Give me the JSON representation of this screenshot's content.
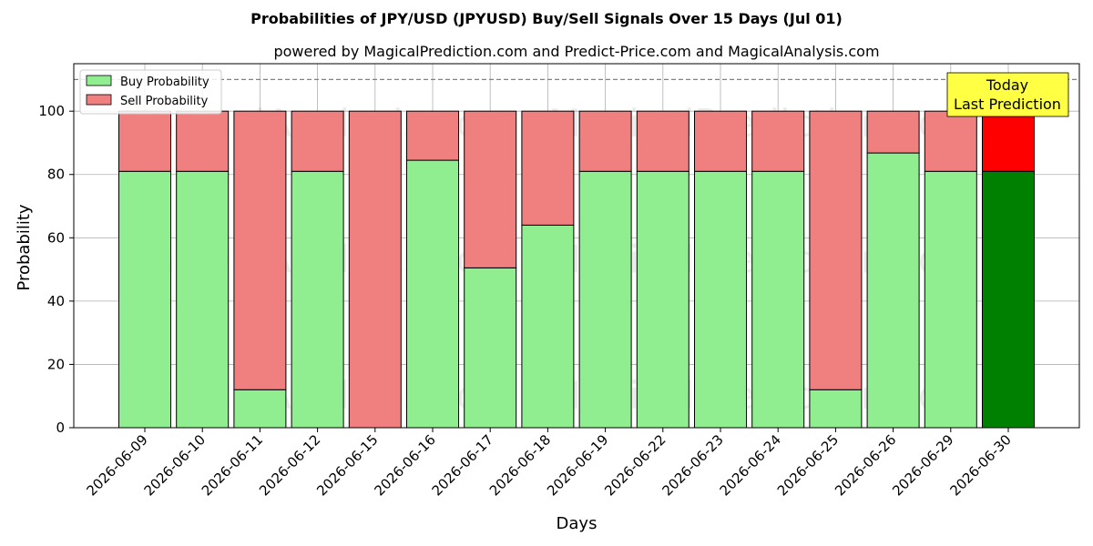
{
  "chart_data": {
    "type": "bar",
    "stacked": true,
    "title": "Probabilities of JPY/USD (JPYUSD) Buy/Sell Signals Over 15 Days (Jul 01)",
    "subtitle": "powered by MagicalPrediction.com and Predict-Price.com and MagicalAnalysis.com",
    "xlabel": "Days",
    "ylabel": "Probability",
    "ylim": [
      0,
      115
    ],
    "yticks": [
      0,
      20,
      40,
      60,
      80,
      100
    ],
    "reference_line": 110,
    "grid": true,
    "legend_position": "top-left",
    "categories": [
      "2026-06-09",
      "2026-06-10",
      "2026-06-11",
      "2026-06-12",
      "2026-06-15",
      "2026-06-16",
      "2026-06-17",
      "2026-06-18",
      "2026-06-19",
      "2026-06-22",
      "2026-06-23",
      "2026-06-24",
      "2026-06-25",
      "2026-06-26",
      "2026-06-29",
      "2026-06-30"
    ],
    "series": [
      {
        "name": "Buy Probability",
        "color": "#90ee90",
        "highlight_color": "#008000",
        "values": [
          81,
          81,
          12,
          81,
          0,
          84.5,
          50.5,
          64,
          81,
          81,
          81,
          81,
          12,
          86.8,
          81,
          81
        ]
      },
      {
        "name": "Sell Probability",
        "color": "#f08080",
        "highlight_color": "#ff0000",
        "values": [
          19,
          19,
          88,
          19,
          100,
          15.5,
          49.5,
          36,
          19,
          19,
          19,
          19,
          88,
          13.2,
          19,
          19
        ]
      }
    ],
    "annotation": {
      "lines": [
        "Today",
        "Last Prediction"
      ],
      "background": "#ffff44"
    },
    "watermarks": [
      "MagicalAnalysis.com",
      "MagicalPrediction.com"
    ]
  }
}
